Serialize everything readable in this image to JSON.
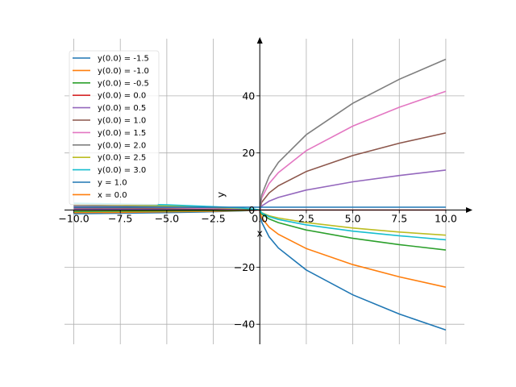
{
  "chart_data": {
    "type": "line",
    "xlabel": "x",
    "ylabel": "y",
    "xlim": [
      -10.5,
      11
    ],
    "ylim": [
      -47,
      60
    ],
    "grid": true,
    "legend_position": "top-left",
    "xticks": [
      -10.0,
      -7.5,
      -5.0,
      -2.5,
      0.0,
      2.5,
      5.0,
      7.5,
      10.0
    ],
    "xtick_labels": [
      "−10.0",
      "−7.5",
      "−5.0",
      "−2.5",
      "0.0",
      "2.5",
      "5.0",
      "7.5",
      "10.0"
    ],
    "yticks": [
      -40,
      -20,
      0,
      20,
      40
    ],
    "ytick_labels": [
      "−40",
      "−20",
      "0",
      "20",
      "40"
    ],
    "x": [
      -10.0,
      -7.5,
      -5.0,
      -2.5,
      -1.0,
      -0.25,
      0.0,
      0.1,
      0.5,
      1.0,
      2.5,
      5.0,
      7.5,
      10.0
    ],
    "series": [
      {
        "name": "y(0.0) = -1.5",
        "color": "#1f77b4",
        "values": [
          -1.3,
          -1.1,
          -0.9,
          -0.6,
          -0.3,
          -0.1,
          0,
          -4.2,
          -9.4,
          -13.3,
          -21.0,
          -29.7,
          -36.4,
          -42.0
        ]
      },
      {
        "name": "y(0.0) = -1.0",
        "color": "#ff7f0e",
        "values": [
          -0.9,
          -0.8,
          -0.6,
          -0.4,
          -0.2,
          -0.05,
          0,
          -2.7,
          -6.0,
          -8.5,
          -13.5,
          -19.1,
          -23.4,
          -27.0
        ]
      },
      {
        "name": "y(0.0) = -0.5",
        "color": "#2ca02c",
        "values": [
          -0.5,
          -0.4,
          -0.3,
          -0.2,
          -0.1,
          0.0,
          0,
          -1.4,
          -3.1,
          -4.4,
          -7.0,
          -9.9,
          -12.1,
          -14.0
        ]
      },
      {
        "name": "y(0.0) = 0.0",
        "color": "#d62728",
        "values": [
          0,
          0,
          0,
          0,
          0,
          0,
          0,
          0,
          0,
          0,
          0,
          0,
          0,
          0
        ]
      },
      {
        "name": "y(0.0) = 0.5",
        "color": "#9467bd",
        "values": [
          0.4,
          0.35,
          0.3,
          0.2,
          0.1,
          0.05,
          0,
          1.4,
          3.1,
          4.4,
          7.0,
          9.9,
          12.1,
          14.0
        ]
      },
      {
        "name": "y(0.0) = 1.0",
        "color": "#8c564b",
        "values": [
          0.8,
          0.7,
          0.6,
          0.4,
          0.2,
          0.1,
          0,
          2.7,
          6.0,
          8.5,
          13.5,
          19.1,
          23.4,
          27.0
        ]
      },
      {
        "name": "y(0.0) = 1.5",
        "color": "#e377c2",
        "values": [
          1.2,
          1.1,
          0.9,
          0.6,
          0.3,
          0.15,
          0,
          4.2,
          9.3,
          13.1,
          20.8,
          29.4,
          36.0,
          41.6
        ]
      },
      {
        "name": "y(0.0) = 2.0",
        "color": "#7f7f7f",
        "values": [
          1.6,
          1.4,
          1.2,
          0.8,
          0.5,
          0.2,
          0,
          5.3,
          11.8,
          16.7,
          26.4,
          37.4,
          45.8,
          52.8
        ]
      },
      {
        "name": "y(0.0) = 2.5",
        "color": "#bcbd22",
        "values": [
          2.0,
          1.8,
          1.5,
          1.0,
          0.6,
          0.25,
          0,
          -0.9,
          -2.0,
          -2.8,
          -4.4,
          -6.3,
          -7.7,
          -8.8
        ]
      },
      {
        "name": "y(0.0) = 3.0",
        "color": "#17becf",
        "values": [
          2.4,
          2.1,
          1.8,
          1.2,
          0.7,
          0.3,
          0,
          -1.0,
          -2.3,
          -3.3,
          -5.2,
          -7.4,
          -9.0,
          -10.4
        ]
      },
      {
        "name": "y = 1.0",
        "color": "#1f77b4",
        "values": [
          1,
          1,
          1,
          1,
          1,
          1,
          1,
          1,
          1,
          1,
          1,
          1,
          1,
          1
        ]
      }
    ],
    "vertical_lines": [
      {
        "name": "x = 0.0",
        "color": "#ff7f0e",
        "x": 0.0
      }
    ]
  }
}
